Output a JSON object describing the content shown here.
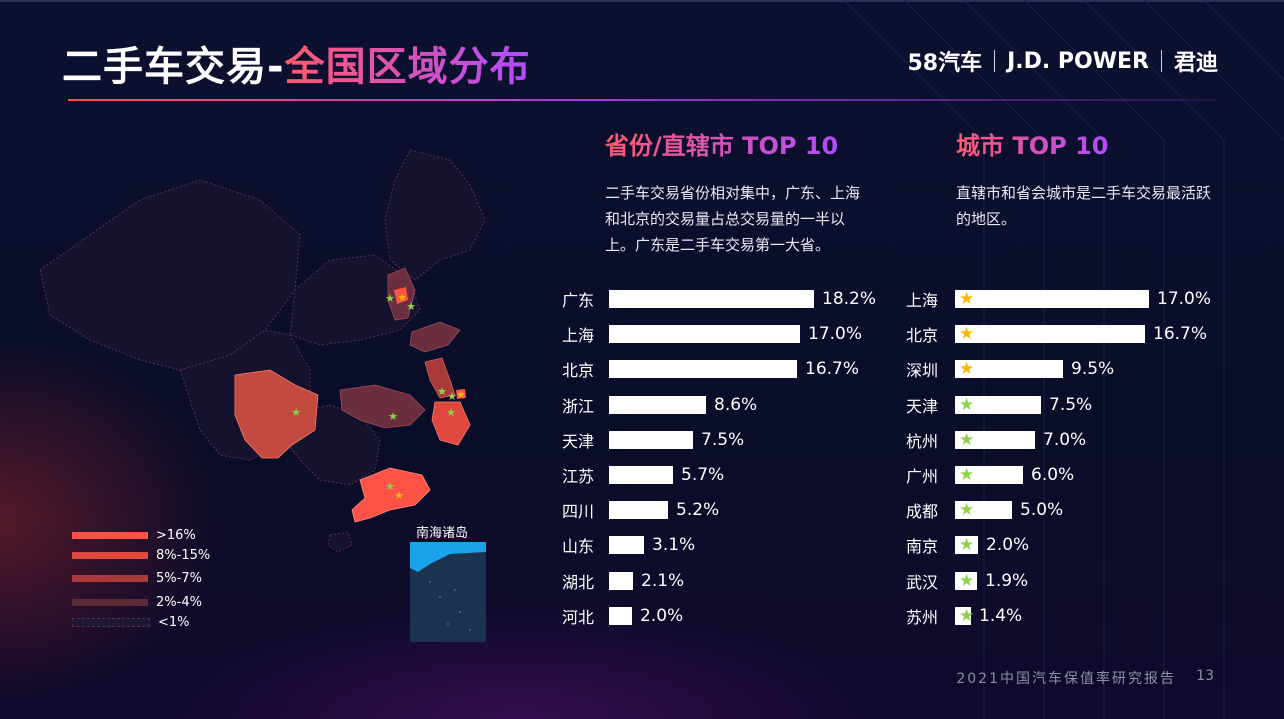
{
  "title": {
    "part1": "二手车交易-",
    "part2": "全国区域分布"
  },
  "logos": {
    "brand1": "58汽车",
    "brand2": "J.D. POWER",
    "brand3": "君迪"
  },
  "colors": {
    "tier1": "#ff5247",
    "tier2": "#e0473f",
    "tier3": "#a83a3a",
    "tier4": "#5a2a36",
    "tier5": "#1e1834",
    "accent_red": "#ff5a6e",
    "accent_purple": "#b14bff",
    "star_gold": "#ffb400",
    "star_green": "#8ed14b"
  },
  "map": {
    "inset_label": "南海诸岛",
    "legend": [
      ">16%",
      "8%-15%",
      "5%-7%",
      "2%-4%",
      "<1%"
    ]
  },
  "chart_data": [
    {
      "type": "bar",
      "orientation": "horizontal",
      "title": "省份/直辖市 TOP 10",
      "description": "二手车交易省份相对集中，广东、上海和北京的交易量占总交易量的一半以上。广东是二手车交易第一大省。",
      "categories": [
        "广东",
        "上海",
        "北京",
        "浙江",
        "天津",
        "江苏",
        "四川",
        "山东",
        "湖北",
        "河北"
      ],
      "values": [
        18.2,
        17.0,
        16.7,
        8.6,
        7.5,
        5.7,
        5.2,
        3.1,
        2.1,
        2.0
      ],
      "labels": [
        "18.2%",
        "17.0%",
        "16.7%",
        "8.6%",
        "7.5%",
        "5.7%",
        "5.2%",
        "3.1%",
        "2.1%",
        "2.0%"
      ],
      "unit": "%"
    },
    {
      "type": "bar",
      "orientation": "horizontal",
      "title": "城市 TOP 10",
      "description": "直辖市和省会城市是二手车交易最活跃的地区。",
      "categories": [
        "上海",
        "北京",
        "深圳",
        "天津",
        "杭州",
        "广州",
        "成都",
        "南京",
        "武汉",
        "苏州"
      ],
      "values": [
        17.0,
        16.7,
        9.5,
        7.5,
        7.0,
        6.0,
        5.0,
        2.0,
        1.9,
        1.4
      ],
      "labels": [
        "17.0%",
        "16.7%",
        "9.5%",
        "7.5%",
        "7.0%",
        "6.0%",
        "5.0%",
        "2.0%",
        "1.9%",
        "1.4%"
      ],
      "star_colors": [
        "gold",
        "gold",
        "gold",
        "green",
        "green",
        "green",
        "green",
        "green",
        "green",
        "green"
      ],
      "unit": "%"
    }
  ],
  "footer": {
    "report": "2021中国汽车保值率研究报告",
    "page": "13"
  }
}
